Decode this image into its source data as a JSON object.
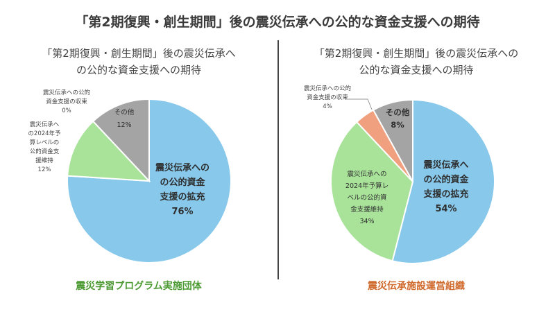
{
  "main_title": "「第2期復興・創生期間」後の震災伝承への公的な資金支援への期待",
  "colors": {
    "blue": "#87C8EB",
    "green": "#A9E39A",
    "gray": "#A4A4A4",
    "orange": "#F0A07E",
    "left_org": "#4C9A32",
    "right_org": "#D06A2D"
  },
  "chart_data": [
    {
      "type": "pie",
      "title_line1": "「第2期復興・創生期間」後の震災伝承へ",
      "title_line2": "の公的な資金支援への期待",
      "organization": "震災学習プログラム実施団体",
      "slices": [
        {
          "label_lines": [
            "震災伝承への",
            "の公的資金",
            "支援の拡充"
          ],
          "value_label": "76%",
          "value": 76,
          "color_key": "blue"
        },
        {
          "label_lines": [
            "震災伝承へ",
            "の2024年予",
            "算レベルの",
            "公的資金支",
            "援維持"
          ],
          "value_label": "12%",
          "value": 12,
          "color_key": "green"
        },
        {
          "label_lines": [
            "その他"
          ],
          "value_label": "12%",
          "value": 12,
          "color_key": "gray"
        },
        {
          "label_lines": [
            "震災伝承への公的",
            "資金支援の収束"
          ],
          "value_label": "0%",
          "value": 0,
          "color_key": "orange"
        }
      ]
    },
    {
      "type": "pie",
      "title_line1": "「第2期復興・創生期間」後の震災伝承への",
      "title_line2": "公的な資金支援への期待",
      "organization": "震災伝承施設運営組織",
      "slices": [
        {
          "label_lines": [
            "震災伝承へ",
            "の公的資金",
            "支援の拡充"
          ],
          "value_label": "54%",
          "value": 54,
          "color_key": "blue"
        },
        {
          "label_lines": [
            "震災伝承への",
            "2024年予算レ",
            "ベルの公的資",
            "金支援維持"
          ],
          "value_label": "34%",
          "value": 34,
          "color_key": "green"
        },
        {
          "label_lines": [
            "震災伝承への公的",
            "資金支援の収束"
          ],
          "value_label": "4%",
          "value": 4,
          "color_key": "orange"
        },
        {
          "label_lines": [
            "その他"
          ],
          "value_label": "8%",
          "value": 8,
          "color_key": "gray"
        }
      ]
    }
  ]
}
